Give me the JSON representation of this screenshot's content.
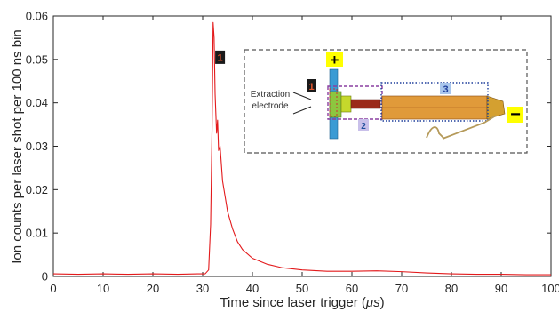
{
  "chart_data": {
    "type": "line",
    "xlabel": "Time since laser trigger (",
    "xlabel_unit": "μs",
    "xlabel_close": ")",
    "ylabel": "Ion counts per laser shot per 100 ns bin",
    "xlim": [
      0,
      100
    ],
    "ylim": [
      0,
      0.06
    ],
    "x_ticks": [
      "0",
      "10",
      "20",
      "30",
      "40",
      "50",
      "60",
      "70",
      "80",
      "90",
      "100"
    ],
    "y_ticks": [
      "0",
      "0.01",
      "0.02",
      "0.03",
      "0.04",
      "0.05",
      "0.06"
    ],
    "grid": false,
    "series": [
      {
        "color": "#e31a1c",
        "points": [
          [
            0,
            0.0006
          ],
          [
            5,
            0.0005
          ],
          [
            10,
            0.0006
          ],
          [
            15,
            0.0005
          ],
          [
            20,
            0.0006
          ],
          [
            25,
            0.0005
          ],
          [
            29,
            0.0006
          ],
          [
            30.5,
            0.0006
          ],
          [
            31.2,
            0.0015
          ],
          [
            31.6,
            0.012
          ],
          [
            31.9,
            0.035
          ],
          [
            32.1,
            0.0585
          ],
          [
            32.3,
            0.055
          ],
          [
            32.5,
            0.042
          ],
          [
            32.8,
            0.033
          ],
          [
            33.0,
            0.036
          ],
          [
            33.2,
            0.029
          ],
          [
            33.5,
            0.03
          ],
          [
            34,
            0.022
          ],
          [
            35,
            0.015
          ],
          [
            36,
            0.011
          ],
          [
            37,
            0.008
          ],
          [
            38,
            0.0062
          ],
          [
            40,
            0.0042
          ],
          [
            43,
            0.0028
          ],
          [
            46,
            0.002
          ],
          [
            50,
            0.0015
          ],
          [
            55,
            0.0012
          ],
          [
            60,
            0.0012
          ],
          [
            65,
            0.0013
          ],
          [
            70,
            0.0011
          ],
          [
            75,
            0.0008
          ],
          [
            80,
            0.0006
          ],
          [
            85,
            0.0005
          ],
          [
            90,
            0.0005
          ],
          [
            95,
            0.0004
          ],
          [
            100,
            0.0004
          ]
        ]
      }
    ],
    "annotation": {
      "label": "1",
      "x": 33.5,
      "y": 0.0505
    },
    "inset": {
      "electrode_label_line1": "Extraction",
      "electrode_label_line2": "electrode",
      "plus": "+",
      "minus": "−",
      "region_labels": [
        "1",
        "2",
        "3"
      ]
    }
  }
}
